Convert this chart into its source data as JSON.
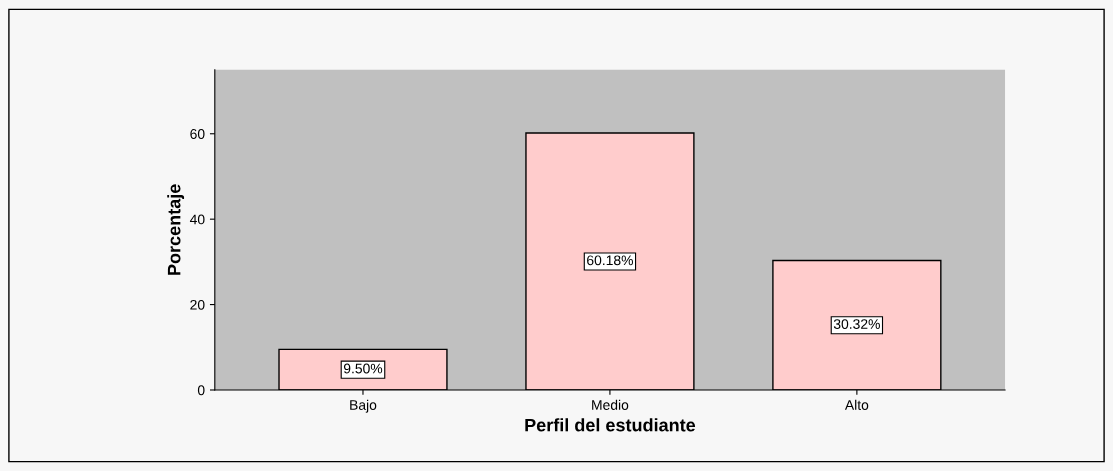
{
  "chart_data": {
    "type": "bar",
    "xlabel": "Perfil del estudiante",
    "ylabel": "Porcentaje",
    "categories": [
      "Bajo",
      "Medio",
      "Alto"
    ],
    "values": [
      9.5,
      60.18,
      30.32
    ],
    "value_labels": [
      "9.50%",
      "60.18%",
      "30.32%"
    ],
    "color": "#ffcccc",
    "ylim": [
      0,
      75
    ],
    "yticks": [
      0,
      20,
      40,
      60
    ],
    "grid": false
  }
}
